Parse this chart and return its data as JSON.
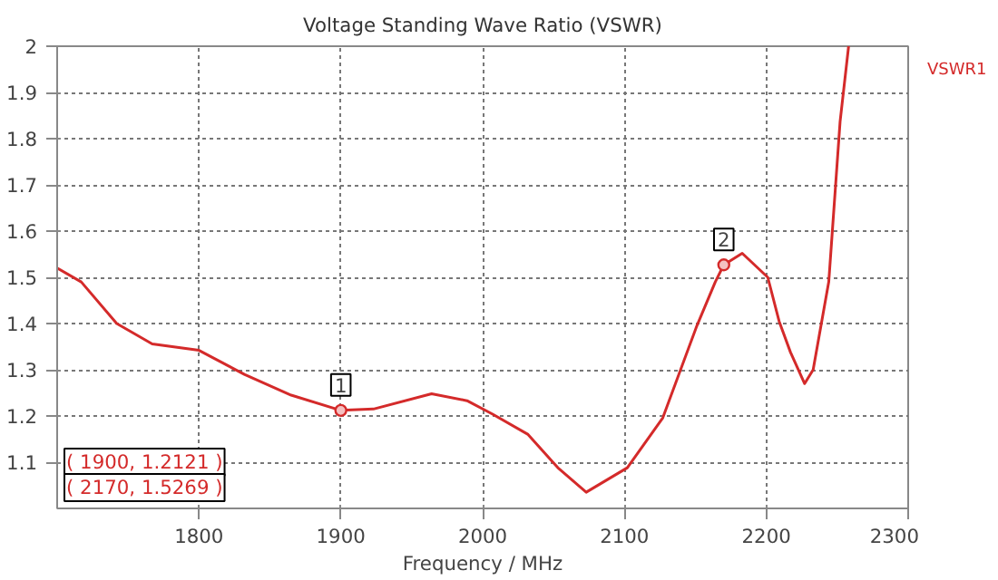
{
  "chart_data": {
    "type": "line",
    "title": "Voltage Standing Wave Ratio (VSWR)",
    "xlabel": "Frequency / MHz",
    "xlim": [
      1700,
      2300
    ],
    "xticks": [
      1800,
      1900,
      2000,
      2100,
      2200,
      2300
    ],
    "ylim": [
      1,
      2
    ],
    "yticks": [
      1.1,
      1.2,
      1.3,
      1.4,
      1.5,
      1.6,
      1.7,
      1.8,
      1.9,
      2
    ],
    "grid": true,
    "line_style": "solid",
    "marker": "none",
    "series": [
      {
        "name": "VSWR1",
        "color": "#d42a2a",
        "x": [
          1700,
          1717,
          1742,
          1767,
          1800,
          1832,
          1865,
          1900,
          1923,
          1964,
          1989,
          2007,
          2032,
          2053,
          2073,
          2102,
          2127,
          2151,
          2164,
          2170,
          2183,
          2201,
          2209,
          2217,
          2227,
          2233,
          2244,
          2252,
          2258
        ],
        "values": [
          1.52,
          1.49,
          1.4,
          1.356,
          1.342,
          1.29,
          1.245,
          1.2121,
          1.215,
          1.248,
          1.233,
          1.204,
          1.16,
          1.088,
          1.035,
          1.088,
          1.196,
          1.395,
          1.49,
          1.5269,
          1.552,
          1.5,
          1.405,
          1.338,
          1.27,
          1.3,
          1.49,
          1.837,
          2.0
        ]
      },
      {
        "type": "scatter",
        "marker": "circle",
        "color": "#d42a2a",
        "x": [
          1900,
          2170
        ],
        "values": [
          1.2121,
          1.5269
        ]
      }
    ],
    "annotations": [
      {
        "text": "1",
        "x": 1900,
        "y": 1.2121
      },
      {
        "text": "2",
        "x": 2170,
        "y": 1.5269
      },
      "( 1900, 1.2121 )",
      "( 2170, 1.5269 )"
    ]
  }
}
